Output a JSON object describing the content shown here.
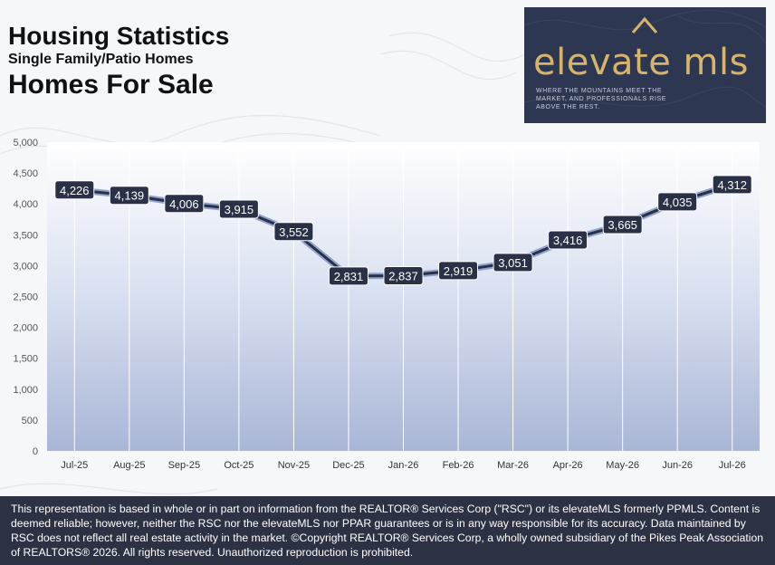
{
  "header": {
    "title": "Housing Statistics",
    "subtitle": "Single Family/Patio Homes",
    "heading": "Homes For Sale"
  },
  "logo": {
    "wordmark": "elevate mls",
    "tagline": "Where the mountains meet the market, and professionals rise above the rest.",
    "brand_color": "#d6b46a",
    "background_color": "#2e3751"
  },
  "chart_data": {
    "type": "line",
    "categories": [
      "Jul-25",
      "Aug-25",
      "Sep-25",
      "Oct-25",
      "Nov-25",
      "Dec-25",
      "Jan-26",
      "Feb-26",
      "Mar-26",
      "Apr-26",
      "May-26",
      "Jun-26",
      "Jul-26"
    ],
    "values": [
      4226,
      4139,
      4006,
      3915,
      3552,
      2831,
      2837,
      2919,
      3051,
      3416,
      3665,
      4035,
      4312
    ],
    "data_labels": [
      "4,226",
      "4,139",
      "4,006",
      "3,915",
      "3,552",
      "2,831",
      "2,837",
      "2,919",
      "3,051",
      "3,416",
      "3,665",
      "4,035",
      "4,312"
    ],
    "y_ticks": [
      0,
      500,
      1000,
      1500,
      2000,
      2500,
      3000,
      3500,
      4000,
      4500,
      5000
    ],
    "y_tick_labels": [
      "0",
      "500",
      "1,000",
      "1,500",
      "2,000",
      "2,500",
      "3,000",
      "3,500",
      "4,000",
      "4,500",
      "5,000"
    ],
    "ylim": [
      0,
      5000
    ],
    "grid": "vertical",
    "line_color": "#2a3046",
    "label_color": "#2a3046"
  },
  "footer": {
    "disclaimer": "This representation is based in whole or in part on information from the REALTOR® Services Corp (\"RSC\") or its elevateMLS formerly PPMLS. Content is deemed reliable; however, neither the RSC nor the elevateMLS nor PPAR guarantees or is in any way responsible for its accuracy. Data maintained by RSC does not reflect all real estate activity in the market.  ©Copyright REALTOR® Services Corp, a wholly owned subsidiary of the Pikes Peak Association of REALTORS® 2026. All rights reserved. Unauthorized reproduction is prohibited."
  }
}
